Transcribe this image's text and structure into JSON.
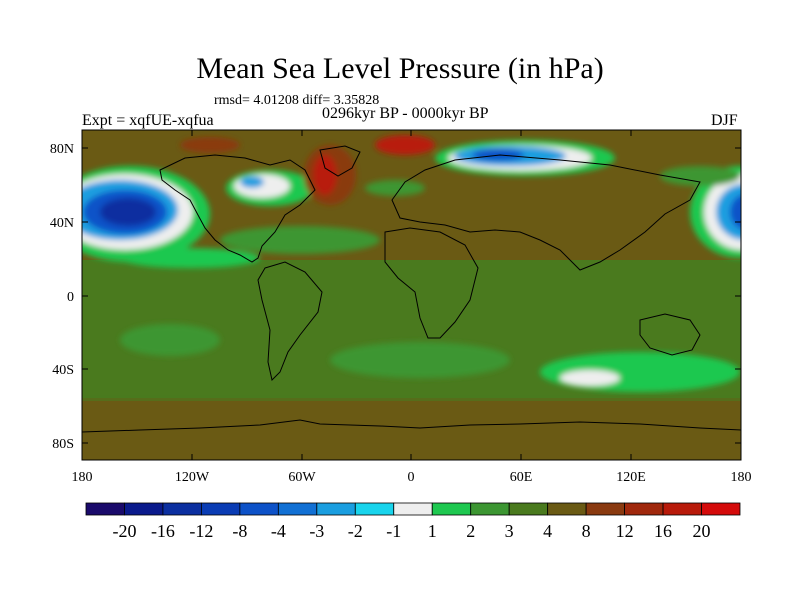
{
  "title": "Mean Sea Level Pressure (in hPa)",
  "stats": "rmsd= 4.01208 diff= 3.35828",
  "experiment": "Expt = xqfUE-xqfua",
  "period": "0296kyr BP - 0000kyr BP",
  "season": "DJF",
  "lat_ticks": [
    "80N",
    "40N",
    "0",
    "40S",
    "80S"
  ],
  "lon_ticks": [
    "180",
    "120W",
    "60W",
    "0",
    "60E",
    "120E",
    "180"
  ],
  "colorbar": {
    "labels": [
      "-20",
      "-16",
      "-12",
      "-8",
      "-4",
      "-3",
      "-2",
      "-1",
      "1",
      "2",
      "3",
      "4",
      "8",
      "12",
      "16",
      "20"
    ],
    "colors": [
      "#1a0a6b",
      "#0a1a8c",
      "#0b2fa0",
      "#0a3cb4",
      "#0d52c8",
      "#1170d4",
      "#1a9ee0",
      "#19d4ec",
      "#eeeeee",
      "#1ec850",
      "#3c9632",
      "#4a7a1e",
      "#6a5a14",
      "#8a3a10",
      "#a0280c",
      "#b81a0a",
      "#d40a0a"
    ]
  }
}
